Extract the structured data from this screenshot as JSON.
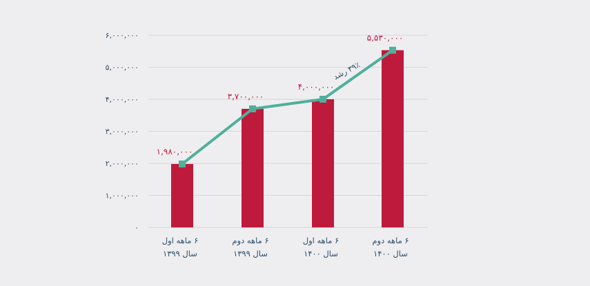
{
  "chart_data": {
    "type": "bar",
    "categories": [
      [
        "۶ ماهه اول",
        "سال ۱۳۹۹"
      ],
      [
        "۶ ماهه دوم",
        "سال ۱۳۹۹"
      ],
      [
        "۶ ماهه اول",
        "سال ۱۴۰۰"
      ],
      [
        "۶ ماهه دوم",
        "سال ۱۴۰۰"
      ]
    ],
    "values": [
      1980000,
      3700000,
      4000000,
      5530000
    ],
    "value_labels": [
      "۱,۹۸۰,۰۰۰",
      "۳,۷۰۰,۰۰۰",
      "۴,۰۰۰,۰۰۰",
      "۵,۵۳۰,۰۰۰"
    ],
    "y_ticks": [
      0,
      1000000,
      2000000,
      3000000,
      4000000,
      5000000,
      6000000
    ],
    "y_tick_labels": [
      "۰",
      "۱,۰۰۰,۰۰۰",
      "۲,۰۰۰,۰۰۰",
      "۳,۰۰۰,۰۰۰",
      "۴,۰۰۰,۰۰۰",
      "۵,۰۰۰,۰۰۰",
      "۶,۰۰۰,۰۰۰"
    ],
    "ylim": [
      0,
      6000000
    ],
    "grid": true,
    "trend_line": {
      "values": [
        1980000,
        3700000,
        4000000,
        5530000
      ],
      "annotation": "۳۹٪ رشد"
    },
    "colors": {
      "bar": "#be1a3c",
      "line": "#4fb09a",
      "value_label": "#be1a3c",
      "axis_label": "#2d4f6b",
      "grid": "#d6d6da",
      "annotation": "#2d4f6b"
    }
  }
}
